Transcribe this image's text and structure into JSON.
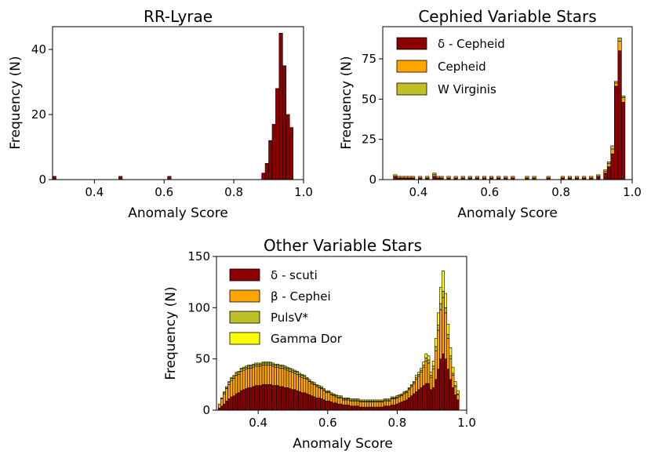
{
  "chart_data": [
    {
      "type": "bar",
      "title": "RR-Lyrae",
      "xlabel": "Anomaly Score",
      "ylabel": "Frequency (N)",
      "xlim": [
        0.28,
        1.0
      ],
      "ylim": [
        0,
        47
      ],
      "xticks": [
        0.4,
        0.6,
        0.8,
        1.0
      ],
      "xtick_labels": [
        "0.4",
        "0.6",
        "0.8",
        "1.0"
      ],
      "yticks": [
        0,
        20,
        40
      ],
      "ytick_labels": [
        "0",
        "20",
        "40"
      ],
      "bin_width": 0.01,
      "colors": [
        "#8b0000"
      ],
      "series": [
        {
          "name": "RR-Lyrae",
          "x": [
            0.285,
            0.475,
            0.615,
            0.885,
            0.895,
            0.905,
            0.915,
            0.925,
            0.935,
            0.945,
            0.955,
            0.965
          ],
          "values": [
            1,
            1,
            1,
            2,
            5,
            12,
            17,
            28,
            45,
            35,
            20,
            16
          ]
        }
      ]
    },
    {
      "type": "bar",
      "title": "Cephied Variable Stars",
      "xlabel": "Anomaly Score",
      "ylabel": "Frequency (N)",
      "xlim": [
        0.3,
        1.0
      ],
      "ylim": [
        0,
        95
      ],
      "xticks": [
        0.4,
        0.6,
        0.8,
        1.0
      ],
      "xtick_labels": [
        "0.4",
        "0.6",
        "0.8",
        "1.0"
      ],
      "yticks": [
        0,
        25,
        50,
        75
      ],
      "ytick_labels": [
        "0",
        "25",
        "50",
        "75"
      ],
      "bin_width": 0.01,
      "legend": [
        "δ - Cepheid",
        "Cepheid",
        "W Virginis"
      ],
      "colors": [
        "#8b0000",
        "#ffa500",
        "#bfbf26"
      ],
      "x": [
        0.335,
        0.345,
        0.355,
        0.365,
        0.375,
        0.385,
        0.405,
        0.425,
        0.445,
        0.455,
        0.465,
        0.485,
        0.505,
        0.525,
        0.545,
        0.565,
        0.585,
        0.605,
        0.625,
        0.645,
        0.665,
        0.705,
        0.725,
        0.765,
        0.805,
        0.825,
        0.845,
        0.865,
        0.885,
        0.905,
        0.925,
        0.935,
        0.945,
        0.955,
        0.965,
        0.975
      ],
      "series": [
        {
          "name": "δ - Cepheid",
          "values": [
            2,
            1,
            1,
            1,
            1,
            1,
            1,
            1,
            2,
            1,
            1,
            1,
            1,
            1,
            1,
            1,
            1,
            1,
            1,
            1,
            1,
            1,
            1,
            1,
            1,
            1,
            1,
            1,
            1,
            2,
            4,
            8,
            16,
            58,
            80,
            48
          ]
        },
        {
          "name": "Cepheid",
          "values": [
            1,
            1,
            1,
            1,
            1,
            1,
            1,
            1,
            1,
            1,
            1,
            1,
            1,
            1,
            1,
            1,
            1,
            1,
            1,
            1,
            1,
            1,
            1,
            1,
            1,
            1,
            1,
            1,
            1,
            1,
            1,
            2,
            3,
            2,
            6,
            3
          ]
        },
        {
          "name": "W Virginis",
          "values": [
            0,
            0,
            0,
            0,
            0,
            0,
            0,
            0,
            1,
            0,
            0,
            0,
            0,
            0,
            0,
            0,
            0,
            0,
            0,
            0,
            0,
            0,
            0,
            0,
            0,
            0,
            0,
            0,
            0,
            0,
            1,
            1,
            2,
            1,
            2,
            1
          ]
        }
      ]
    },
    {
      "type": "bar",
      "title": "Other Variable Stars",
      "xlabel": "Anomaly Score",
      "ylabel": "Frequency (N)",
      "xlim": [
        0.28,
        1.0
      ],
      "ylim": [
        0,
        150
      ],
      "xticks": [
        0.4,
        0.6,
        0.8,
        1.0
      ],
      "xtick_labels": [
        "0.4",
        "0.6",
        "0.8",
        "1.0"
      ],
      "yticks": [
        0,
        50,
        100,
        150
      ],
      "ytick_labels": [
        "0",
        "50",
        "100",
        "150"
      ],
      "bin_width": 0.007,
      "legend": [
        "δ - scuti",
        "β - Cephei",
        "PulsV*",
        "Gamma Dor"
      ],
      "colors": [
        "#8b0000",
        "#ffa500",
        "#bfbf26",
        "#ffff00"
      ],
      "x": [
        0.2885,
        0.2955,
        0.3025,
        0.3095,
        0.3165,
        0.3235,
        0.3305,
        0.3375,
        0.3445,
        0.3515,
        0.3585,
        0.3655,
        0.3725,
        0.3795,
        0.3865,
        0.3935,
        0.4005,
        0.4075,
        0.4145,
        0.4215,
        0.4285,
        0.4355,
        0.4425,
        0.4495,
        0.4565,
        0.4635,
        0.4705,
        0.4775,
        0.4845,
        0.4915,
        0.4985,
        0.5055,
        0.5125,
        0.5195,
        0.5265,
        0.5335,
        0.5405,
        0.5475,
        0.5545,
        0.5615,
        0.5685,
        0.5755,
        0.5825,
        0.5895,
        0.5965,
        0.6035,
        0.6105,
        0.6175,
        0.6245,
        0.6315,
        0.6385,
        0.6455,
        0.6525,
        0.6595,
        0.6665,
        0.6735,
        0.6805,
        0.6875,
        0.6945,
        0.7015,
        0.7085,
        0.7155,
        0.7225,
        0.7295,
        0.7365,
        0.7435,
        0.7505,
        0.7575,
        0.7645,
        0.7715,
        0.7785,
        0.7855,
        0.7925,
        0.7995,
        0.8065,
        0.8135,
        0.8205,
        0.8275,
        0.8345,
        0.8415,
        0.8485,
        0.8555,
        0.8625,
        0.8695,
        0.8765,
        0.8835,
        0.8905,
        0.8975,
        0.9045,
        0.9115,
        0.9185,
        0.9255,
        0.9325,
        0.9395,
        0.9465,
        0.9535,
        0.9605,
        0.9675,
        0.9745
      ],
      "series": [
        {
          "name": "δ - scuti",
          "values": [
            2,
            4,
            6,
            9,
            11,
            13,
            14,
            16,
            17,
            19,
            20,
            21,
            22,
            22,
            23,
            24,
            24,
            24,
            25,
            25,
            25,
            25,
            24,
            24,
            24,
            23,
            23,
            22,
            22,
            21,
            20,
            20,
            19,
            18,
            17,
            17,
            16,
            15,
            14,
            13,
            12,
            12,
            11,
            10,
            9,
            9,
            8,
            7,
            7,
            6,
            6,
            5,
            5,
            5,
            4,
            4,
            4,
            4,
            3,
            3,
            3,
            3,
            3,
            3,
            3,
            3,
            3,
            3,
            4,
            4,
            4,
            5,
            5,
            6,
            7,
            8,
            9,
            10,
            12,
            14,
            16,
            18,
            20,
            22,
            24,
            26,
            26,
            20,
            22,
            30,
            40,
            50,
            55,
            50,
            40,
            30,
            22,
            15,
            10
          ]
        },
        {
          "name": "β - Cephei",
          "values": [
            4,
            7,
            10,
            12,
            14,
            16,
            17,
            18,
            18,
            19,
            19,
            19,
            19,
            19,
            19,
            19,
            19,
            19,
            19,
            19,
            19,
            19,
            19,
            18,
            18,
            18,
            18,
            18,
            17,
            17,
            17,
            16,
            16,
            15,
            15,
            14,
            14,
            13,
            12,
            12,
            11,
            10,
            10,
            9,
            8,
            8,
            7,
            7,
            6,
            6,
            6,
            5,
            5,
            5,
            5,
            5,
            5,
            5,
            5,
            5,
            5,
            5,
            5,
            5,
            5,
            5,
            5,
            5,
            5,
            5,
            5,
            6,
            6,
            6,
            6,
            6,
            7,
            7,
            8,
            9,
            10,
            12,
            13,
            15,
            18,
            22,
            20,
            12,
            18,
            28,
            38,
            48,
            55,
            45,
            30,
            20,
            12,
            8,
            5
          ]
        },
        {
          "name": "PulsV*",
          "values": [
            0,
            1,
            1,
            1,
            2,
            2,
            2,
            2,
            2,
            2,
            2,
            2,
            2,
            2,
            2,
            2,
            2,
            2,
            2,
            2,
            2,
            2,
            2,
            2,
            2,
            2,
            2,
            2,
            2,
            2,
            2,
            2,
            2,
            2,
            2,
            2,
            1,
            1,
            1,
            1,
            1,
            1,
            1,
            1,
            1,
            1,
            1,
            1,
            1,
            1,
            1,
            1,
            1,
            1,
            1,
            1,
            1,
            1,
            1,
            1,
            1,
            1,
            1,
            1,
            1,
            1,
            1,
            1,
            1,
            1,
            1,
            1,
            1,
            1,
            1,
            1,
            1,
            1,
            1,
            1,
            1,
            2,
            2,
            2,
            2,
            3,
            3,
            2,
            3,
            4,
            5,
            6,
            6,
            5,
            4,
            3,
            2,
            1,
            1
          ]
        },
        {
          "name": "Gamma Dor",
          "values": [
            0,
            0,
            1,
            1,
            1,
            1,
            1,
            1,
            1,
            1,
            1,
            1,
            1,
            1,
            1,
            1,
            1,
            1,
            1,
            1,
            1,
            1,
            1,
            1,
            1,
            1,
            1,
            1,
            1,
            1,
            1,
            1,
            1,
            1,
            1,
            1,
            1,
            1,
            1,
            1,
            1,
            1,
            1,
            1,
            1,
            1,
            1,
            1,
            1,
            1,
            1,
            1,
            1,
            1,
            1,
            1,
            1,
            1,
            1,
            1,
            1,
            1,
            1,
            1,
            1,
            1,
            1,
            1,
            1,
            1,
            1,
            1,
            1,
            1,
            1,
            1,
            1,
            1,
            1,
            1,
            1,
            2,
            2,
            2,
            3,
            4,
            4,
            3,
            5,
            8,
            12,
            16,
            20,
            14,
            10,
            8,
            6,
            4,
            3
          ]
        }
      ]
    }
  ]
}
